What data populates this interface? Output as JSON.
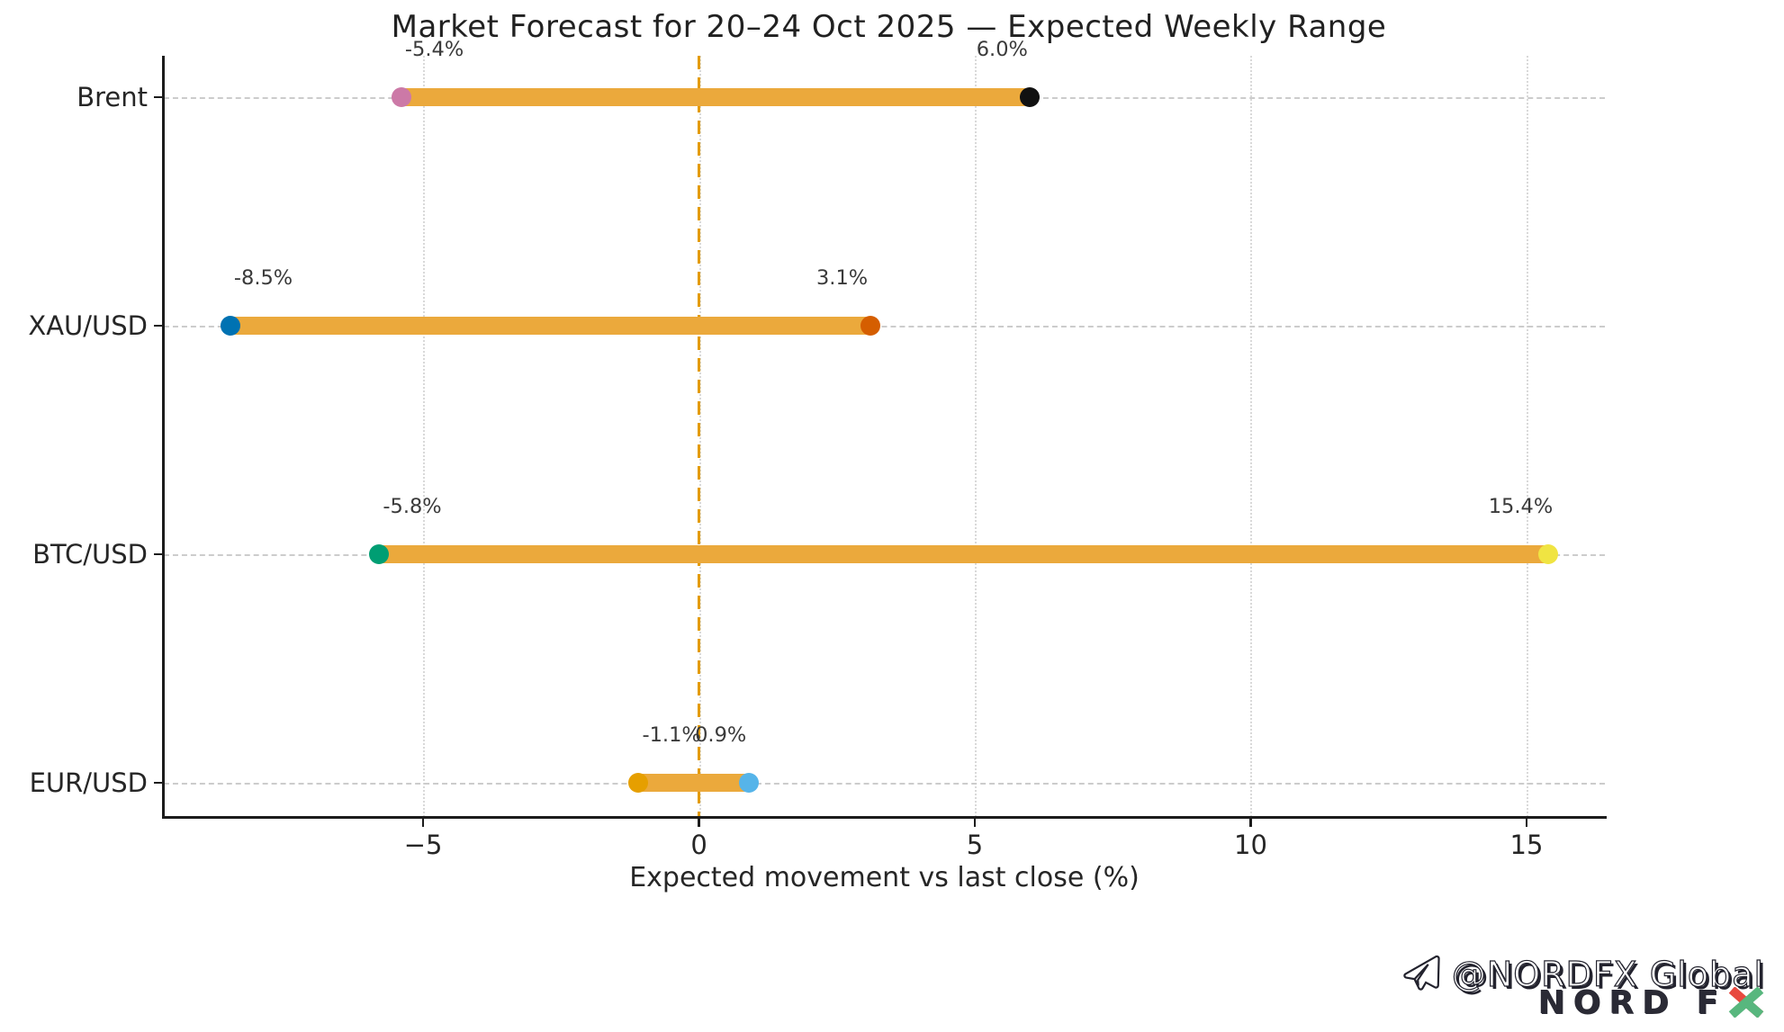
{
  "chart_data": {
    "type": "dumbbell_range",
    "title": "Market Forecast for 20–24 Oct 2025 — Expected Weekly Range",
    "xlabel": "Expected movement vs last close (%)",
    "xlim": [
      -9.7,
      16.42
    ],
    "xticks": [
      -5,
      0,
      5,
      10,
      15
    ],
    "xtick_labels": [
      "−5",
      "0",
      "5",
      "10",
      "15"
    ],
    "grid": true,
    "legend": false,
    "zero_line": {
      "x": 0,
      "color": "#E39B00",
      "style": "dashed"
    },
    "bar_color": "#EBA93C",
    "categories": [
      "Brent",
      "XAU/USD",
      "BTC/USD",
      "EUR/USD"
    ],
    "series": [
      {
        "name": "Brent",
        "low": -5.4,
        "high": 6.0,
        "low_label": "-5.4%",
        "high_label": "6.0%",
        "low_color": "#CC79A7",
        "high_color": "#111111"
      },
      {
        "name": "XAU/USD",
        "low": -8.5,
        "high": 3.1,
        "low_label": "-8.5%",
        "high_label": "3.1%",
        "low_color": "#0072B2",
        "high_color": "#D55E00"
      },
      {
        "name": "BTC/USD",
        "low": -5.8,
        "high": 15.4,
        "low_label": "-5.8%",
        "high_label": "15.4%",
        "low_color": "#009E73",
        "high_color": "#F0E442"
      },
      {
        "name": "EUR/USD",
        "low": -1.1,
        "high": 0.9,
        "low_label": "-1.1%",
        "high_label": "0.9%",
        "low_color": "#E69F00",
        "high_color": "#56B4E9"
      }
    ]
  },
  "watermark": {
    "handle": "@NORDFX Global",
    "brand_prefix": "NORD F",
    "colors": {
      "brand_dark": "#2a2a35",
      "x_red": "#E8493F",
      "x_green": "#58B77E"
    }
  }
}
